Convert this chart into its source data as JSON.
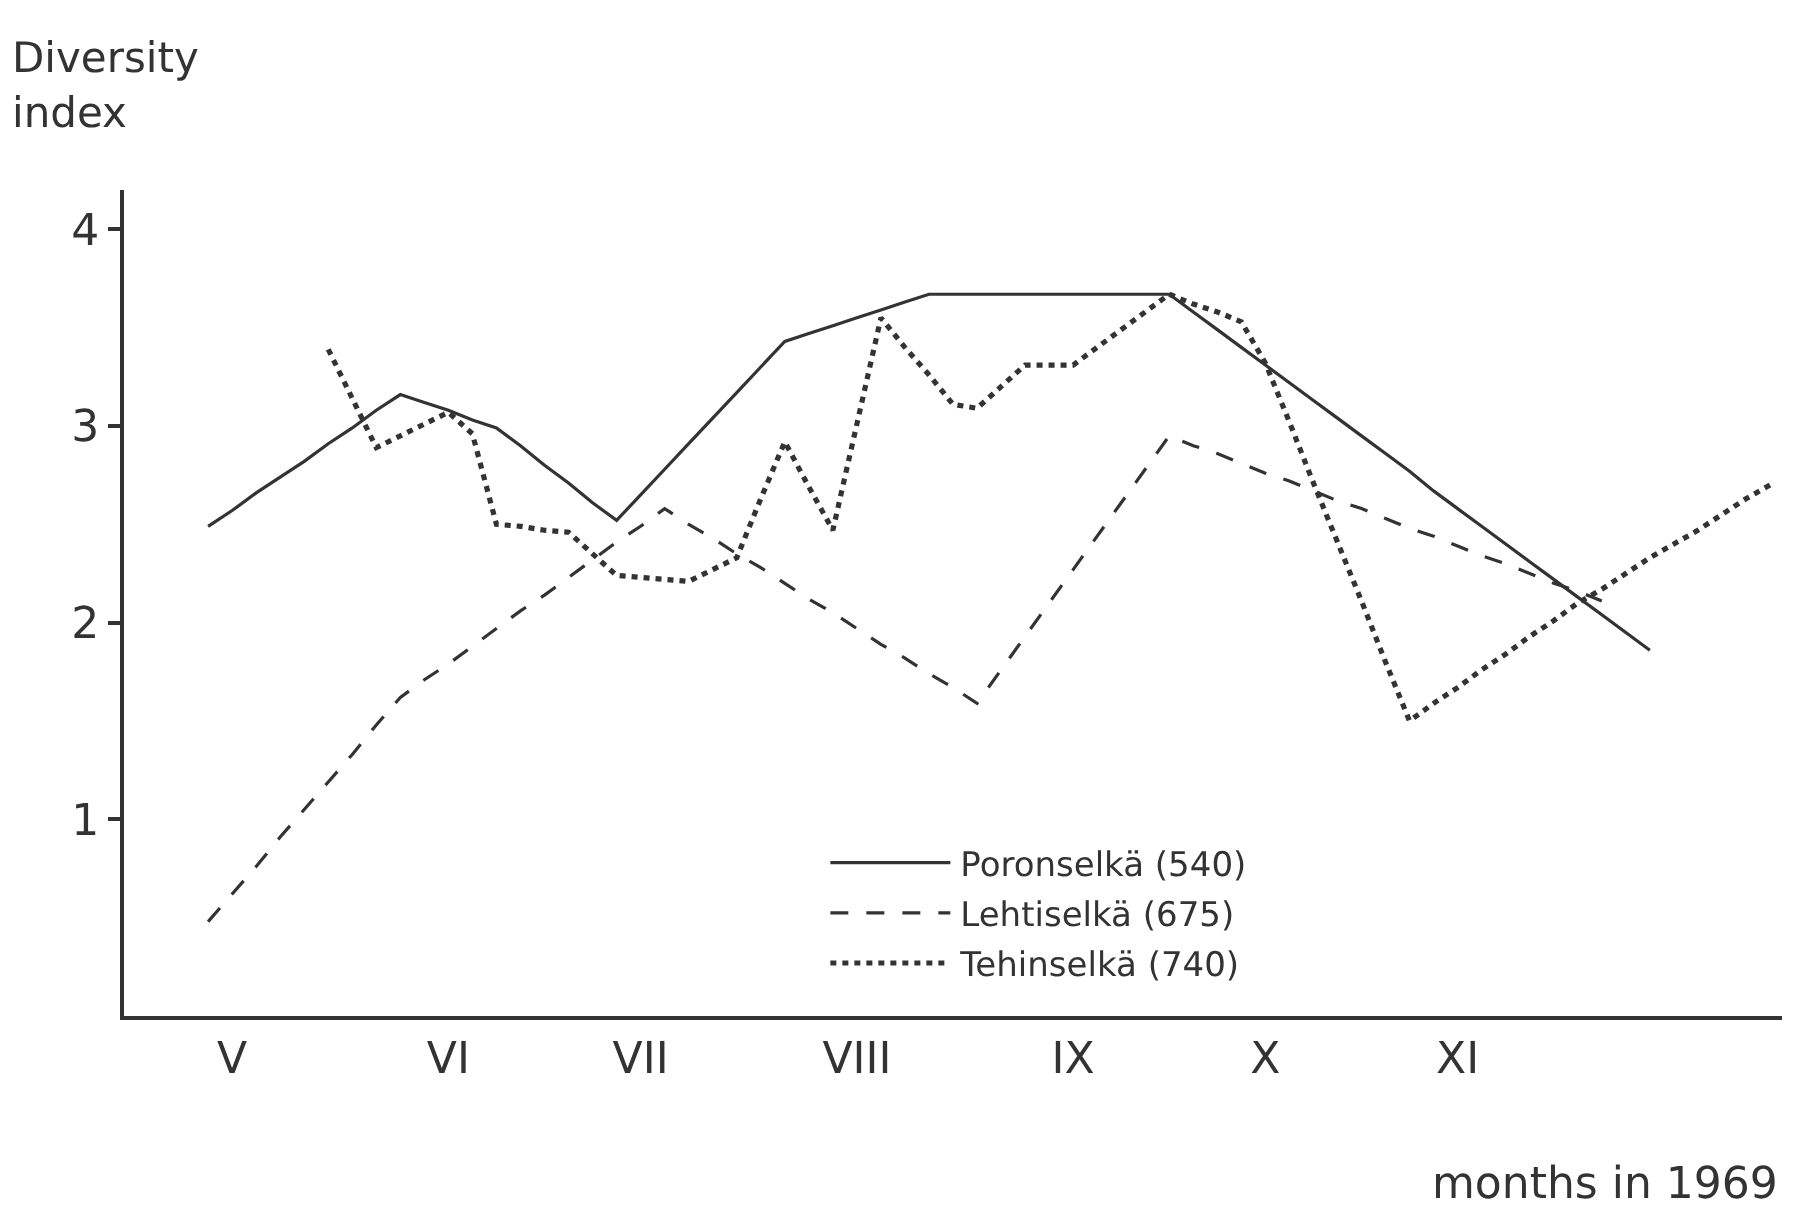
{
  "chart_data": {
    "type": "line",
    "ylabel": "Diversity\nindex",
    "xlabel": "months in 1969",
    "categories": [
      null,
      null,
      null,
      null,
      "V",
      null,
      null,
      null,
      null,
      null,
      null,
      null,
      null,
      "VI",
      null,
      null,
      null,
      null,
      null,
      null,
      null,
      "VII",
      null,
      null,
      null,
      null,
      null,
      null,
      null,
      null,
      "VIII",
      null,
      null,
      null,
      null,
      null,
      null,
      null,
      null,
      "IX",
      null,
      null,
      null,
      null,
      null,
      null,
      null,
      "X",
      null,
      null,
      null,
      null,
      null,
      null,
      null,
      "XI",
      null,
      null,
      null,
      null,
      null,
      null,
      null,
      null,
      null,
      null,
      null,
      null,
      null
    ],
    "ylim": [
      0,
      4.2
    ],
    "yticks": [
      1,
      2,
      3,
      4
    ],
    "legend": "bottom",
    "marker": "none",
    "series": [
      {
        "name": "Poronselkä (540)",
        "color": "#333333",
        "line_style": "solid",
        "values": [
          null,
          null,
          null,
          2.49,
          2.57,
          2.66,
          2.74,
          2.82,
          2.91,
          2.99,
          3.08,
          3.16,
          3.12,
          3.08,
          3.03,
          2.99,
          2.9,
          2.8,
          2.71,
          2.61,
          2.52,
          2.65,
          2.78,
          2.91,
          3.04,
          3.17,
          3.3,
          3.43,
          3.47,
          3.51,
          3.55,
          3.59,
          3.63,
          3.67,
          3.67,
          3.67,
          3.67,
          3.67,
          3.67,
          3.67,
          3.67,
          3.67,
          3.67,
          3.67,
          3.58,
          3.49,
          3.4,
          3.31,
          3.22,
          3.13,
          3.04,
          2.95,
          2.86,
          2.77,
          2.67,
          2.58,
          2.49,
          2.4,
          2.31,
          2.22,
          2.13,
          2.04,
          1.95,
          1.86,
          null,
          null,
          null,
          null,
          null
        ]
      },
      {
        "name": "Lehtiselkä (675)",
        "color": "#333333",
        "line_style": "dashed",
        "values": [
          null,
          null,
          null,
          0.48,
          0.62,
          0.76,
          0.91,
          1.05,
          1.19,
          1.33,
          1.48,
          1.62,
          1.71,
          1.79,
          1.88,
          1.97,
          2.06,
          2.14,
          2.23,
          2.32,
          2.41,
          2.49,
          2.58,
          2.5,
          2.43,
          2.35,
          2.28,
          2.2,
          2.12,
          2.05,
          1.97,
          1.89,
          1.82,
          1.74,
          1.67,
          1.59,
          1.76,
          1.93,
          2.1,
          2.27,
          2.44,
          2.61,
          2.78,
          2.95,
          2.9,
          2.86,
          2.81,
          2.76,
          2.72,
          2.67,
          2.62,
          2.58,
          2.53,
          2.48,
          2.44,
          2.39,
          2.34,
          2.3,
          2.25,
          2.2,
          2.16,
          2.11,
          null,
          null,
          null,
          null,
          null,
          null,
          null
        ]
      },
      {
        "name": "Tehinselkä (740)",
        "color": "#333333",
        "line_style": "dotted",
        "values": [
          null,
          null,
          null,
          null,
          null,
          null,
          null,
          null,
          3.39,
          3.14,
          2.89,
          2.95,
          3.01,
          3.07,
          2.96,
          2.5,
          2.49,
          2.47,
          2.46,
          2.35,
          2.24,
          2.23,
          2.22,
          2.21,
          2.27,
          2.33,
          2.63,
          2.92,
          2.69,
          2.47,
          3.01,
          3.55,
          3.4,
          3.26,
          3.11,
          3.09,
          3.2,
          3.31,
          3.31,
          3.31,
          3.4,
          3.49,
          3.58,
          3.67,
          3.62,
          3.58,
          3.53,
          3.32,
          3.02,
          2.71,
          2.41,
          2.11,
          1.8,
          1.5,
          1.59,
          1.67,
          1.76,
          1.84,
          1.93,
          2.01,
          2.1,
          2.17,
          2.25,
          2.33,
          2.4,
          2.47,
          2.55,
          2.63,
          2.7
        ]
      }
    ]
  }
}
